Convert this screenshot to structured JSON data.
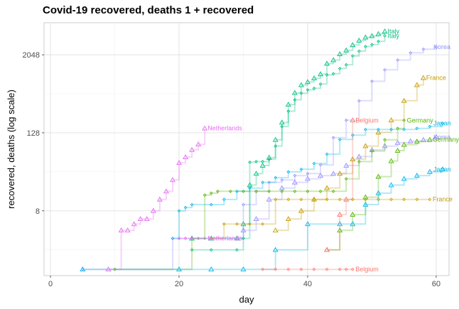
{
  "chart_data": {
    "type": "line",
    "title": "Covid-19 recovered, deaths 1 + recovered",
    "xlabel": "day",
    "ylabel": "recovered, deaths (log scale)",
    "xlim": [
      -1,
      62
    ],
    "ylim": [
      0.8,
      6400
    ],
    "y_scale": "log2",
    "x_ticks": [
      0,
      20,
      40,
      60
    ],
    "y_ticks": [
      8,
      128,
      2048
    ],
    "grid": true,
    "legend": "none",
    "marker_note": "diamond markers = recovered, triangle markers = deaths 1 + recovered",
    "series": [
      {
        "name": "Italy",
        "color": "#00BF7D",
        "metric": "recovered",
        "marker": "diamond",
        "x": [
          22,
          25,
          29,
          30,
          31,
          32,
          33,
          34,
          35,
          36,
          37,
          38,
          39,
          40,
          41,
          42,
          43,
          44,
          45,
          46,
          47,
          48,
          49,
          50,
          51,
          52
        ],
        "y": [
          2,
          2,
          2,
          3,
          45,
          46,
          46,
          50,
          80,
          160,
          276,
          414,
          523,
          589,
          622,
          724,
          1004,
          1045,
          1258,
          1439,
          1966,
          2335,
          2749,
          2941,
          3300,
          4025
        ]
      },
      {
        "name": "Italy",
        "color": "#00BF7D",
        "metric": "deaths 1 + recovered",
        "marker": "triangle",
        "x": [
          22,
          25,
          29,
          30,
          31,
          32,
          33,
          34,
          35,
          36,
          37,
          38,
          39,
          40,
          41,
          42,
          43,
          44,
          45,
          46,
          47,
          48,
          49,
          50,
          51,
          52
        ],
        "y": [
          3,
          3,
          3,
          5,
          20,
          30,
          40,
          53,
          100,
          185,
          350,
          530,
          700,
          780,
          890,
          1030,
          1500,
          1700,
          2100,
          2400,
          2900,
          3400,
          3800,
          4000,
          4300,
          4700
        ]
      },
      {
        "name": "Korea",
        "color": "#9590FF",
        "metric": "recovered",
        "marker": "diamond",
        "x": [
          5,
          19,
          20,
          22,
          25,
          29,
          30,
          32,
          34,
          36,
          38,
          40,
          42,
          44,
          46,
          48,
          50,
          52,
          54,
          56,
          58,
          60
        ],
        "y": [
          1,
          3,
          3,
          3,
          3,
          3,
          10,
          16,
          22,
          24,
          28,
          30,
          41,
          108,
          200,
          400,
          800,
          1200,
          1700,
          2200,
          2500,
          2700
        ]
      },
      {
        "name": "Korea",
        "color": "#9590FF",
        "metric": "deaths 1 + recovered",
        "marker": "triangle",
        "x": [
          30,
          32,
          34,
          36,
          38,
          40,
          42,
          44,
          46,
          48,
          50,
          52,
          54,
          56,
          58,
          60
        ],
        "y": [
          4,
          6,
          12,
          18,
          22,
          25,
          28,
          30,
          40,
          55,
          70,
          80,
          90,
          95,
          100,
          110
        ]
      },
      {
        "name": "France",
        "color": "#C49A00",
        "metric": "recovered",
        "marker": "diamond",
        "x": [
          25,
          27,
          29,
          31,
          33,
          35,
          37,
          39,
          41,
          43,
          45,
          47,
          49,
          51,
          53,
          55,
          57,
          59
        ],
        "y": [
          3,
          5,
          5,
          5,
          5,
          12,
          12,
          12,
          12,
          12,
          12,
          12,
          12,
          12,
          12,
          12,
          12,
          12
        ]
      },
      {
        "name": "France",
        "color": "#C49A00",
        "metric": "deaths 1 + recovered",
        "marker": "triangle",
        "x": [
          35,
          37,
          39,
          41,
          43,
          45,
          47,
          49,
          51,
          53,
          55,
          57,
          58
        ],
        "y": [
          4,
          6,
          8,
          12,
          18,
          30,
          50,
          80,
          130,
          200,
          400,
          700,
          900
        ]
      },
      {
        "name": "Germany",
        "color": "#53B400",
        "metric": "recovered",
        "marker": "diamond",
        "x": [
          10,
          22,
          24,
          25,
          26,
          28,
          30,
          32,
          34,
          36,
          38,
          40,
          42,
          44,
          46,
          48,
          50,
          52,
          54,
          55
        ],
        "y": [
          1,
          3,
          14,
          15,
          16,
          16,
          16,
          16,
          16,
          16,
          16,
          16,
          16,
          16,
          25,
          46,
          67,
          100,
          150,
          200
        ]
      },
      {
        "name": "Germany",
        "color": "#53B400",
        "metric": "deaths 1 + recovered",
        "marker": "triangle",
        "x": [
          43,
          45,
          47,
          49,
          51,
          53,
          54,
          55,
          57,
          59
        ],
        "y": [
          2,
          4,
          7,
          13,
          27,
          47,
          68,
          84,
          94,
          100
        ]
      },
      {
        "name": "Japan",
        "color": "#00B6EB",
        "metric": "recovered",
        "marker": "diamond",
        "x": [
          19,
          20,
          21,
          22,
          25,
          27,
          29,
          31,
          33,
          35,
          37,
          39,
          41,
          43,
          45,
          47,
          49,
          51,
          53,
          55,
          57,
          59,
          61
        ],
        "y": [
          3,
          8,
          9,
          10,
          10,
          12,
          16,
          18,
          22,
          26,
          32,
          35,
          43,
          60,
          101,
          118,
          144,
          144,
          144,
          144,
          150,
          160,
          180
        ]
      },
      {
        "name": "Japan",
        "color": "#00B6EB",
        "metric": "deaths 1 + recovered",
        "marker": "triangle",
        "x": [
          5,
          20,
          25,
          30,
          35,
          40,
          45,
          47,
          49,
          51,
          53,
          55,
          57,
          59,
          61
        ],
        "y": [
          1,
          1,
          1,
          1,
          2,
          5,
          5,
          5,
          10,
          15,
          20,
          25,
          28,
          32,
          35
        ]
      },
      {
        "name": "Belgium",
        "color": "#F8766D",
        "metric": "recovered",
        "marker": "diamond",
        "x": [
          33,
          35,
          37,
          39,
          41,
          43,
          45,
          46,
          47
        ],
        "y": [
          1,
          1,
          1,
          1,
          1,
          1,
          1,
          1,
          1
        ]
      },
      {
        "name": "Belgium",
        "color": "#F8766D",
        "metric": "deaths 1 + recovered",
        "marker": "triangle",
        "x": [
          43,
          45,
          46,
          47
        ],
        "y": [
          2,
          7,
          12,
          200
        ]
      },
      {
        "name": "Netherlands",
        "color": "#E76BF3",
        "metric": "recovered",
        "marker": "diamond",
        "x": [
          20,
          21,
          22,
          23,
          24
        ],
        "y": [
          3,
          3,
          3,
          3,
          3
        ]
      },
      {
        "name": "Netherlands",
        "color": "#E76BF3",
        "metric": "deaths 1 + recovered",
        "marker": "triangle",
        "x": [
          9,
          11,
          12,
          13,
          14,
          15,
          16,
          17,
          18,
          19,
          20,
          21,
          22,
          23,
          24
        ],
        "y": [
          1,
          4,
          4,
          5,
          6,
          6,
          8,
          12,
          16,
          24,
          44,
          54,
          70,
          85,
          150
        ]
      }
    ]
  }
}
